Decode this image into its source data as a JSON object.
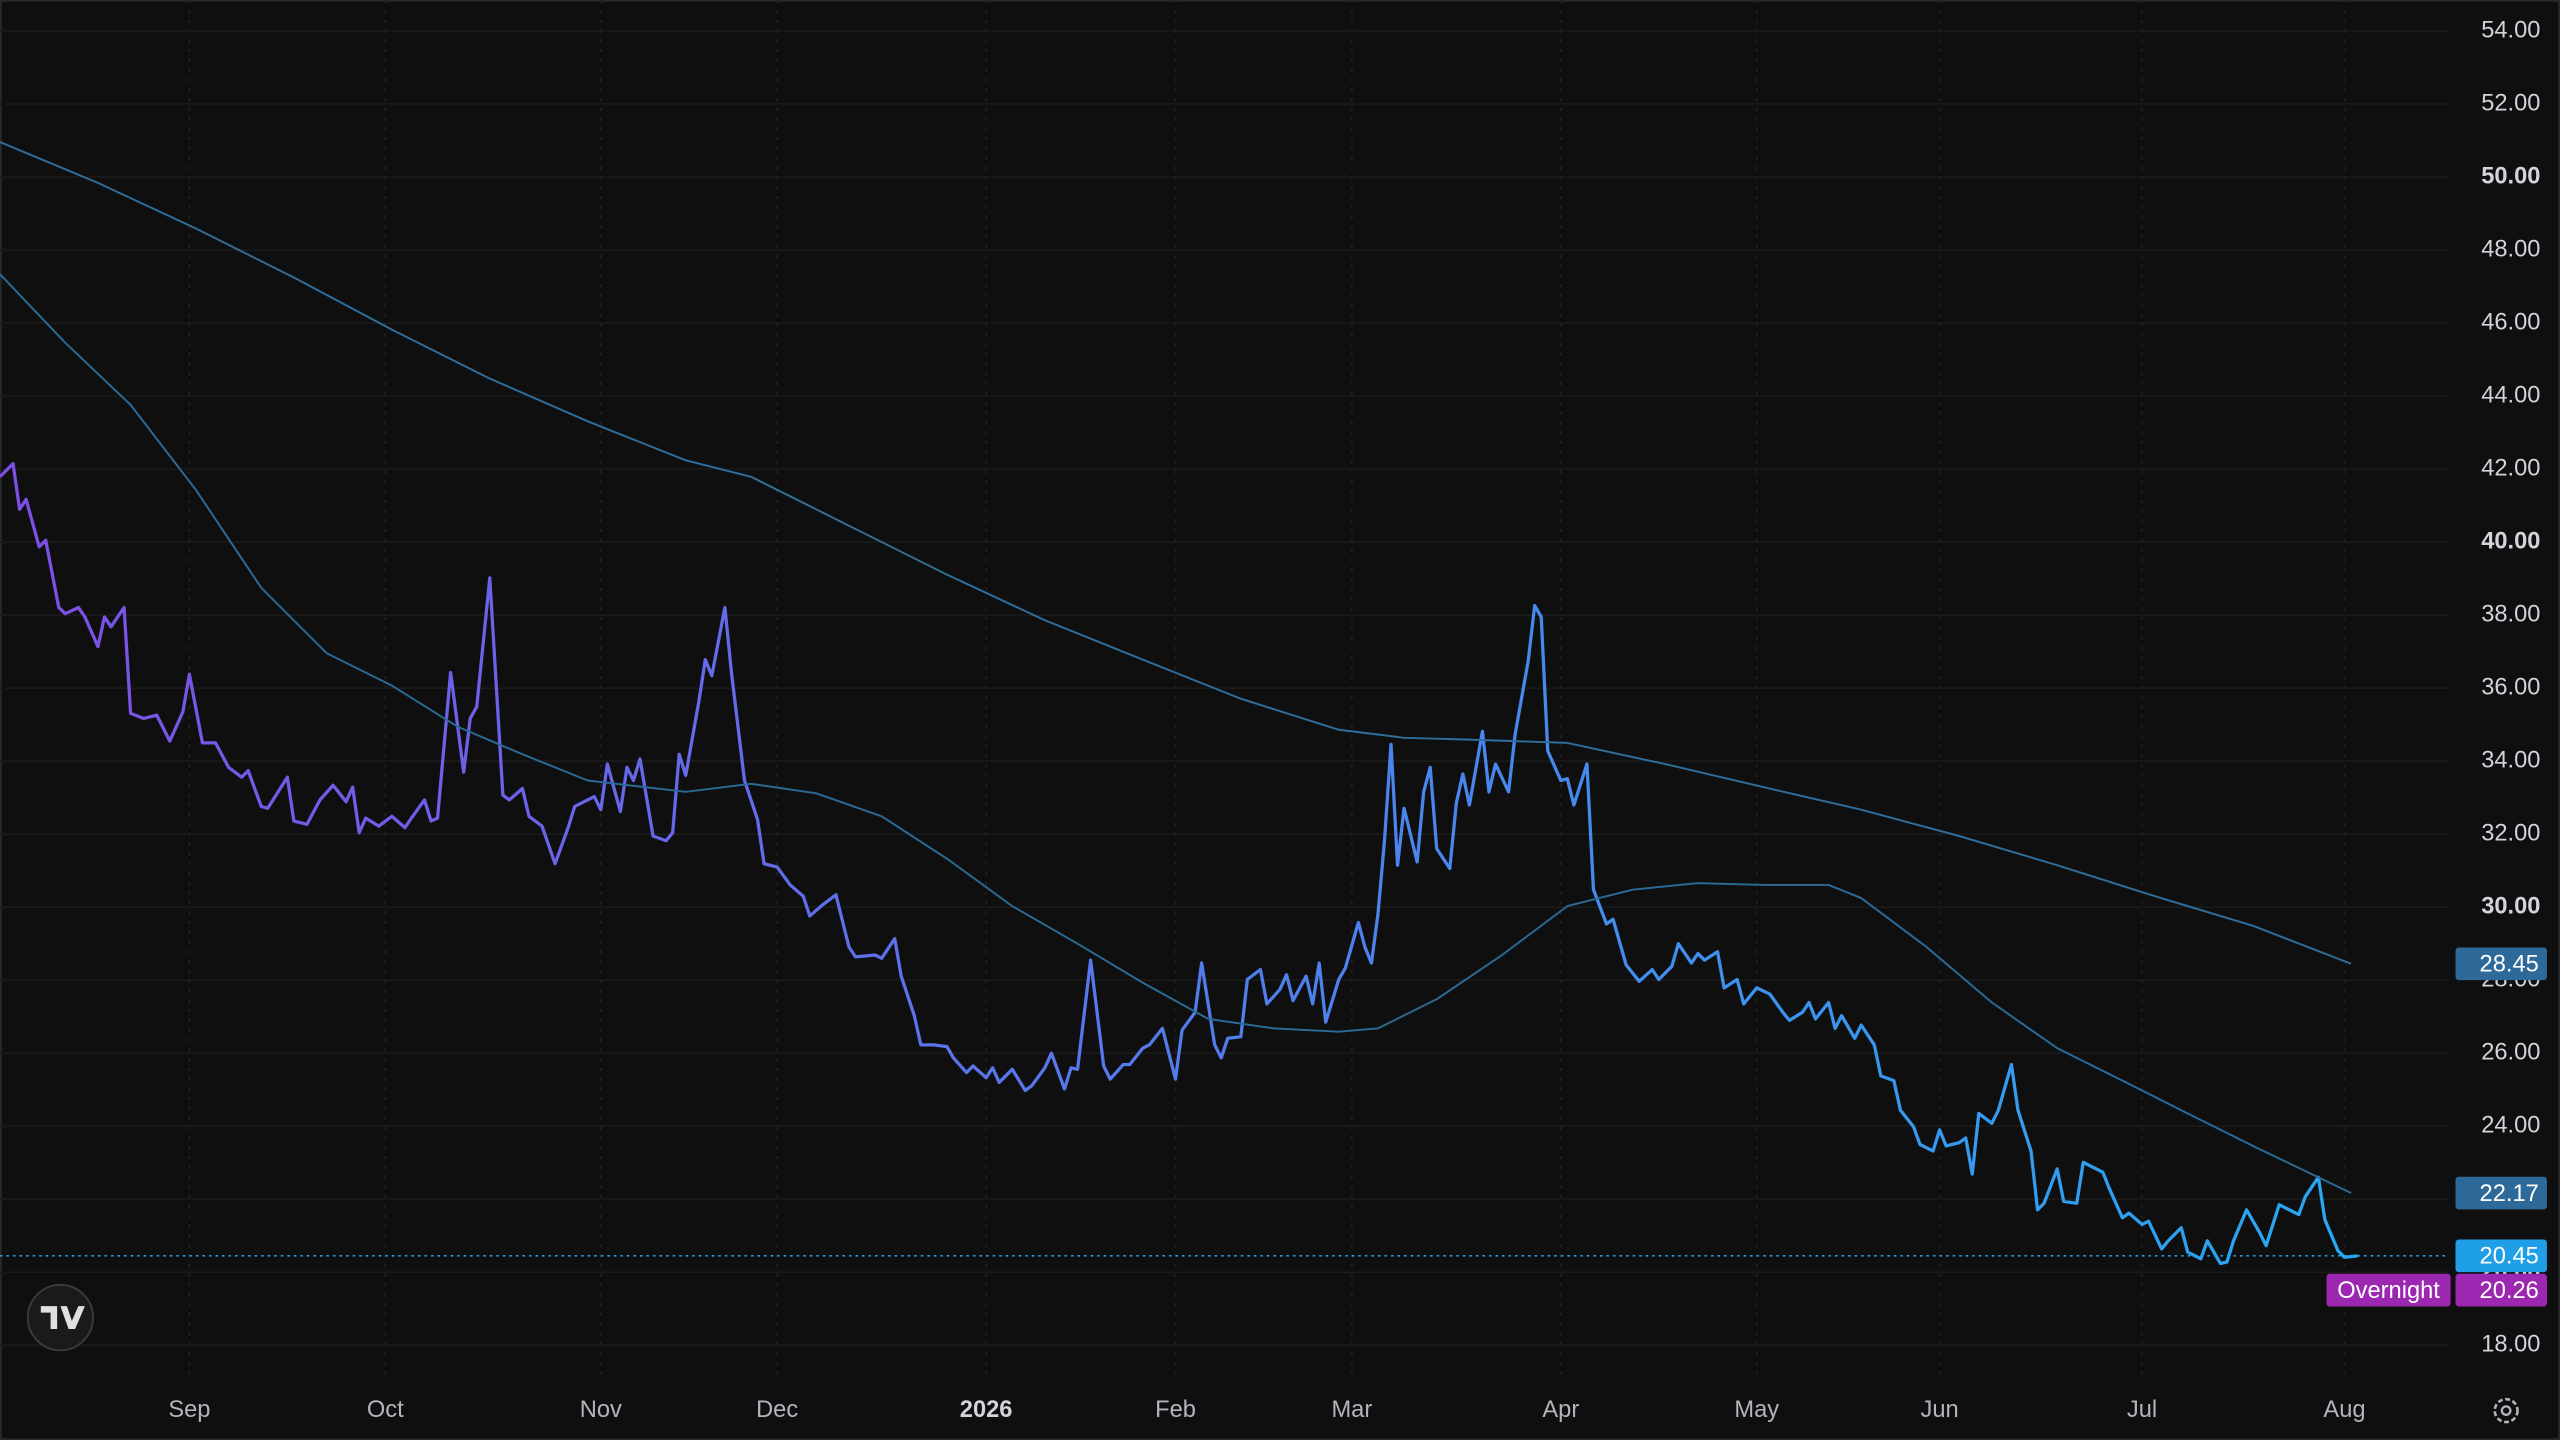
{
  "chart_data": {
    "type": "line",
    "xlim": [
      0,
      375
    ],
    "ylim": [
      17.06,
      54.85
    ],
    "xticks": [
      {
        "value": 29,
        "label": "Sep"
      },
      {
        "value": 59,
        "label": "Oct"
      },
      {
        "value": 92,
        "label": "Nov"
      },
      {
        "value": 119,
        "label": "Dec"
      },
      {
        "value": 151,
        "label": "2026"
      },
      {
        "value": 180,
        "label": "Feb"
      },
      {
        "value": 207,
        "label": "Mar"
      },
      {
        "value": 239,
        "label": "Apr"
      },
      {
        "value": 269,
        "label": "May"
      },
      {
        "value": 297,
        "label": "Jun"
      },
      {
        "value": 328,
        "label": "Jul"
      },
      {
        "value": 359,
        "label": "Aug"
      }
    ],
    "yticks": [
      {
        "value": 18,
        "label": "18.00"
      },
      {
        "value": 20,
        "label": "20.00"
      },
      {
        "value": 22,
        "label": "22.00"
      },
      {
        "value": 24,
        "label": "24.00"
      },
      {
        "value": 26,
        "label": "26.00"
      },
      {
        "value": 28,
        "label": "28.00"
      },
      {
        "value": 30,
        "label": "30.00"
      },
      {
        "value": 32,
        "label": "32.00"
      },
      {
        "value": 34,
        "label": "34.00"
      },
      {
        "value": 36,
        "label": "36.00"
      },
      {
        "value": 38,
        "label": "38.00"
      },
      {
        "value": 40,
        "label": "40.00"
      },
      {
        "value": 42,
        "label": "42.00"
      },
      {
        "value": 44,
        "label": "44.00"
      },
      {
        "value": 46,
        "label": "46.00"
      },
      {
        "value": 48,
        "label": "48.00"
      },
      {
        "value": 50,
        "label": "50.00"
      },
      {
        "value": 52,
        "label": "52.00"
      },
      {
        "value": 54,
        "label": "54.00"
      }
    ],
    "grid": true,
    "series": [
      {
        "colors": [
          "#7e4fe6",
          "#27a8f2"
        ],
        "tag_color": "#1e9fe8",
        "x": [
          0,
          2,
          3,
          4,
          6,
          7,
          9,
          10,
          12,
          13,
          15,
          16,
          17,
          19,
          20,
          22,
          24,
          26,
          28,
          29,
          31,
          33,
          35,
          37,
          38,
          40,
          41,
          44,
          45,
          47,
          49,
          51,
          53,
          54,
          55,
          56,
          58,
          60,
          62,
          63,
          65,
          66,
          67,
          69,
          71,
          72,
          73,
          75,
          77,
          78,
          80,
          81,
          83,
          85,
          87,
          88,
          91,
          92,
          93,
          95,
          96,
          97,
          98,
          100,
          102,
          103,
          104,
          105,
          107,
          108,
          109,
          111,
          112,
          114,
          116,
          117,
          119,
          121,
          123,
          124,
          126,
          128,
          130,
          131,
          134,
          135,
          137,
          138,
          140,
          141,
          143,
          145,
          146,
          148,
          149,
          151,
          152,
          153,
          155,
          157,
          158,
          160,
          161,
          163,
          164,
          165,
          167,
          169,
          170,
          172,
          173,
          175,
          176,
          178,
          180,
          181,
          183,
          184,
          186,
          187,
          188,
          190,
          191,
          193,
          194,
          196,
          197,
          198,
          200,
          201,
          202,
          203,
          205,
          206,
          208,
          209,
          210,
          211,
          212,
          213,
          214,
          215,
          217,
          218,
          219,
          220,
          222,
          223,
          224,
          225,
          227,
          228,
          229,
          231,
          232,
          234,
          235,
          236,
          237,
          239,
          240,
          241,
          243,
          244,
          246,
          247,
          249,
          251,
          253,
          254,
          256,
          257,
          259,
          260,
          261,
          263,
          264,
          266,
          267,
          269,
          271,
          273,
          274,
          276,
          277,
          278,
          280,
          281,
          282,
          284,
          285,
          287,
          288,
          290,
          291,
          293,
          294,
          296,
          297,
          298,
          300,
          301,
          302,
          303,
          305,
          306,
          308,
          309,
          311,
          312,
          313,
          315,
          316,
          318,
          319,
          321,
          322,
          323,
          325,
          326,
          328,
          329,
          331,
          332,
          334,
          335,
          337,
          338,
          340,
          341,
          342,
          344,
          346,
          347,
          349,
          351,
          352,
          353,
          355,
          356,
          358,
          359,
          361
        ],
        "values": [
          41.79,
          42.15,
          40.9,
          41.17,
          39.87,
          40.05,
          38.21,
          38.04,
          38.21,
          37.95,
          37.14,
          37.95,
          37.68,
          38.21,
          35.31,
          35.17,
          35.26,
          34.55,
          35.35,
          36.38,
          34.5,
          34.5,
          33.83,
          33.56,
          33.74,
          32.76,
          32.71,
          33.56,
          32.36,
          32.27,
          32.94,
          33.34,
          32.89,
          33.29,
          32.04,
          32.44,
          32.22,
          32.49,
          32.18,
          32.44,
          32.94,
          32.36,
          32.44,
          36.43,
          33.7,
          35.17,
          35.49,
          39.02,
          33.07,
          32.94,
          33.25,
          32.49,
          32.22,
          31.19,
          32.18,
          32.76,
          33.03,
          32.67,
          33.92,
          32.62,
          33.83,
          33.47,
          34.06,
          31.95,
          31.82,
          32.04,
          34.19,
          33.61,
          35.62,
          36.78,
          36.34,
          38.21,
          36.43,
          33.47,
          32.4,
          31.19,
          31.1,
          30.61,
          30.3,
          29.76,
          30.07,
          30.34,
          28.91,
          28.64,
          28.69,
          28.6,
          29.14,
          28.11,
          27.03,
          26.23,
          26.23,
          26.18,
          25.87,
          25.47,
          25.65,
          25.33,
          25.6,
          25.2,
          25.56,
          24.98,
          25.11,
          25.6,
          26.0,
          25.02,
          25.6,
          25.56,
          28.55,
          25.65,
          25.29,
          25.69,
          25.69,
          26.14,
          26.23,
          26.68,
          25.29,
          26.63,
          27.12,
          28.47,
          26.23,
          25.87,
          26.41,
          26.45,
          28.02,
          28.29,
          27.35,
          27.75,
          28.15,
          27.44,
          28.11,
          27.35,
          28.47,
          26.85,
          28.02,
          28.33,
          29.58,
          28.91,
          28.47,
          29.81,
          31.82,
          34.46,
          31.15,
          32.71,
          31.24,
          33.16,
          33.83,
          31.6,
          31.06,
          32.85,
          33.65,
          32.8,
          34.82,
          33.16,
          33.92,
          33.16,
          34.73,
          36.74,
          38.26,
          37.95,
          34.28,
          33.47,
          33.52,
          32.8,
          33.92,
          30.48,
          29.54,
          29.67,
          28.42,
          27.97,
          28.29,
          28.02,
          28.38,
          29.0,
          28.47,
          28.73,
          28.55,
          28.78,
          27.79,
          28.02,
          27.35,
          27.79,
          27.62,
          27.12,
          26.9,
          27.12,
          27.39,
          26.94,
          27.39,
          26.68,
          27.03,
          26.41,
          26.77,
          26.23,
          25.38,
          25.25,
          24.44,
          23.99,
          23.5,
          23.32,
          23.9,
          23.46,
          23.55,
          23.68,
          22.69,
          24.35,
          24.08,
          24.44,
          25.69,
          24.44,
          23.32,
          21.71,
          21.89,
          22.83,
          21.94,
          21.89,
          23.01,
          22.83,
          22.74,
          22.29,
          21.49,
          21.62,
          21.31,
          21.4,
          20.64,
          20.86,
          21.22,
          20.55,
          20.37,
          20.86,
          20.24,
          20.28,
          20.86,
          21.71,
          21.09,
          20.73,
          21.85,
          21.67,
          21.58,
          22.07,
          22.6,
          21.44,
          20.59,
          20.41,
          20.45
        ]
      },
      {
        "color": "#2f6e9c",
        "tag_color": "#2d6a9a",
        "x": [
          0,
          15,
          30,
          45,
          60,
          75,
          90,
          105,
          115,
          130,
          145,
          160,
          175,
          190,
          205,
          215,
          225,
          240,
          255,
          270,
          285,
          300,
          315,
          330,
          345,
          360
        ],
        "values": [
          50.96,
          49.84,
          48.59,
          47.25,
          45.82,
          44.48,
          43.31,
          42.24,
          41.79,
          40.45,
          39.11,
          37.86,
          36.78,
          35.71,
          34.86,
          34.64,
          34.59,
          34.5,
          33.92,
          33.29,
          32.67,
          31.95,
          31.15,
          30.3,
          29.49,
          28.45
        ]
      },
      {
        "color": "#2b6a96",
        "tag_color": "#2d6a9a",
        "x": [
          0,
          10,
          20,
          30,
          40,
          50,
          60,
          70,
          80,
          90,
          105,
          115,
          125,
          135,
          145,
          155,
          165,
          175,
          185,
          195,
          205,
          211,
          220,
          230,
          240,
          250,
          260,
          270,
          280,
          285,
          295,
          305,
          315,
          325,
          335,
          345,
          360
        ],
        "values": [
          47.34,
          45.46,
          43.76,
          41.43,
          38.75,
          36.96,
          36.07,
          34.95,
          34.19,
          33.47,
          33.16,
          33.38,
          33.12,
          32.49,
          31.33,
          30.03,
          29.0,
          27.93,
          26.94,
          26.68,
          26.59,
          26.68,
          27.48,
          28.69,
          30.03,
          30.48,
          30.66,
          30.61,
          30.61,
          30.25,
          28.91,
          27.39,
          26.14,
          25.25,
          24.35,
          23.46,
          22.17
        ]
      }
    ],
    "overnight": {
      "label": "Overnight",
      "value": 20.26,
      "color": "#9c27b0"
    }
  }
}
